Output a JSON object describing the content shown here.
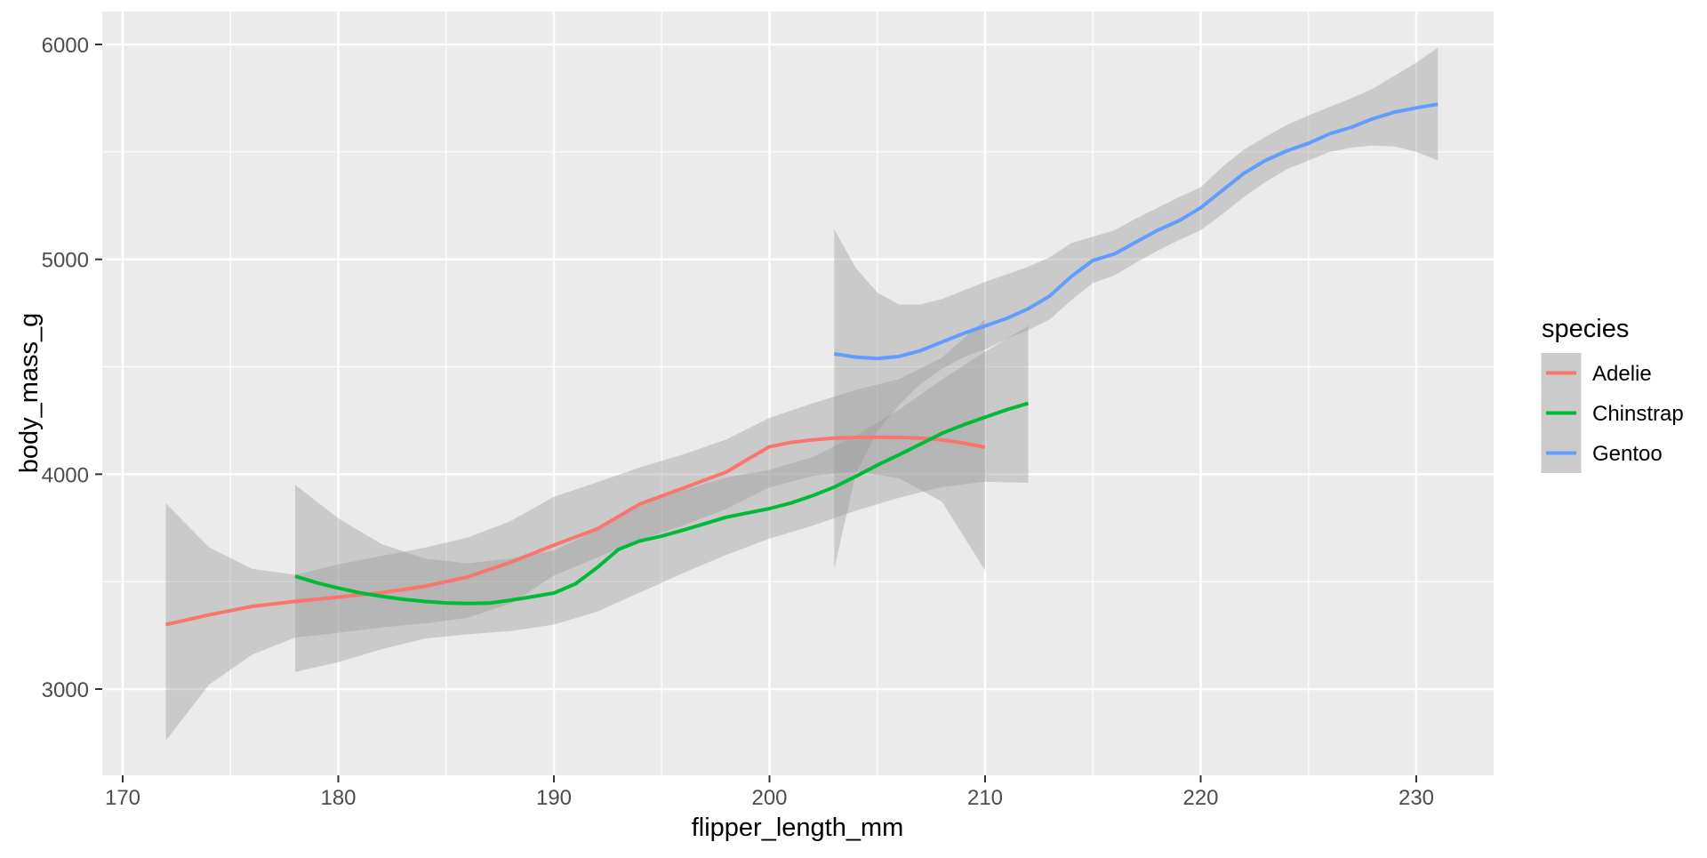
{
  "figure": {
    "kind": "ggplot2 smoothed line chart",
    "background": "#FFFFFF"
  },
  "colors": {
    "panel_bg": "#EBEBEB",
    "grid": "#FFFFFF",
    "tick_mark": "#333333",
    "tick_label": "#4D4D4D",
    "axis_title": "#000000",
    "ribbon_fill": "#999999",
    "legend_key_bg": "#CBCBCB"
  },
  "legend": {
    "title": "species",
    "entries": [
      {
        "label": "Adelie",
        "color": "#F8766D"
      },
      {
        "label": "Chinstrap",
        "color": "#00BA38"
      },
      {
        "label": "Gentoo",
        "color": "#619CFF"
      }
    ]
  },
  "chart_data": {
    "type": "line",
    "subtype": "loess-smooth-with-confidence-ribbons",
    "xlabel": "flipper_length_mm",
    "ylabel": "body_mass_g",
    "x_ticks": [
      170,
      180,
      190,
      200,
      210,
      220,
      230
    ],
    "x_minor_ticks": [
      175,
      185,
      195,
      205,
      215,
      225
    ],
    "y_ticks": [
      3000,
      4000,
      5000,
      6000
    ],
    "y_minor_ticks": [
      3500,
      4500,
      5500
    ],
    "xlim": [
      169.1,
      233.6
    ],
    "ylim": [
      2600,
      6150
    ],
    "grid": "major+minor",
    "legend_position": "right",
    "ribbon_fill": "#999999",
    "ribbon_opacity": 0.4,
    "series": [
      {
        "name": "Adelie",
        "color": "#F8766D",
        "x": [
          172,
          174,
          176,
          178,
          180,
          182,
          184,
          186,
          188,
          190,
          192,
          194,
          196,
          198,
          199,
          200,
          201,
          202,
          203,
          204,
          205,
          206,
          207,
          208,
          209,
          210
        ],
        "y": [
          3300,
          3345,
          3385,
          3408,
          3428,
          3448,
          3478,
          3522,
          3590,
          3670,
          3745,
          3862,
          3935,
          4010,
          4070,
          4128,
          4148,
          4160,
          4168,
          4171,
          4172,
          4171,
          4168,
          4160,
          4145,
          4125
        ],
        "ribbon": [
          [
            172,
            2760,
            3865
          ],
          [
            174,
            3020,
            3660
          ],
          [
            176,
            3160,
            3560
          ],
          [
            178,
            3240,
            3532
          ],
          [
            180,
            3262,
            3580
          ],
          [
            182,
            3287,
            3620
          ],
          [
            184,
            3305,
            3658
          ],
          [
            186,
            3332,
            3705
          ],
          [
            188,
            3398,
            3782
          ],
          [
            190,
            3528,
            3895
          ],
          [
            192,
            3612,
            3962
          ],
          [
            194,
            3695,
            4032
          ],
          [
            196,
            3762,
            4092
          ],
          [
            198,
            3838,
            4162
          ],
          [
            200,
            3938,
            4262
          ],
          [
            202,
            3992,
            4330
          ],
          [
            204,
            4012,
            4392
          ],
          [
            206,
            3982,
            4442
          ],
          [
            208,
            3872,
            4542
          ],
          [
            210,
            3552,
            4722
          ]
        ]
      },
      {
        "name": "Chinstrap",
        "color": "#00BA38",
        "x": [
          178,
          179,
          180,
          181,
          182,
          183,
          184,
          185,
          186,
          187,
          188,
          189,
          190,
          191,
          192,
          193,
          194,
          195,
          196,
          197,
          198,
          199,
          200,
          201,
          202,
          203,
          204,
          205,
          206,
          207,
          208,
          209,
          210,
          211,
          212
        ],
        "y": [
          3525,
          3495,
          3470,
          3448,
          3432,
          3418,
          3408,
          3401,
          3398,
          3400,
          3414,
          3430,
          3447,
          3490,
          3565,
          3650,
          3690,
          3712,
          3740,
          3770,
          3800,
          3820,
          3840,
          3866,
          3900,
          3940,
          3990,
          4042,
          4090,
          4140,
          4190,
          4230,
          4265,
          4300,
          4330
        ],
        "ribbon": [
          [
            178,
            3080,
            3950
          ],
          [
            180,
            3125,
            3795
          ],
          [
            182,
            3185,
            3675
          ],
          [
            184,
            3235,
            3608
          ],
          [
            186,
            3255,
            3585
          ],
          [
            188,
            3270,
            3608
          ],
          [
            190,
            3300,
            3645
          ],
          [
            192,
            3360,
            3740
          ],
          [
            194,
            3450,
            3860
          ],
          [
            196,
            3540,
            3925
          ],
          [
            198,
            3625,
            3985
          ],
          [
            200,
            3700,
            4020
          ],
          [
            202,
            3760,
            4080
          ],
          [
            204,
            3830,
            4180
          ],
          [
            206,
            3890,
            4300
          ],
          [
            208,
            3940,
            4440
          ],
          [
            210,
            3965,
            4570
          ],
          [
            212,
            3960,
            4690
          ]
        ]
      },
      {
        "name": "Gentoo",
        "color": "#619CFF",
        "x": [
          203,
          204,
          205,
          206,
          207,
          208,
          209,
          210,
          211,
          212,
          213,
          214,
          215,
          216,
          217,
          218,
          219,
          220,
          221,
          222,
          223,
          224,
          225,
          226,
          227,
          228,
          229,
          230,
          231
        ],
        "y": [
          4560,
          4545,
          4538,
          4548,
          4575,
          4615,
          4655,
          4690,
          4725,
          4770,
          4830,
          4920,
          4995,
          5025,
          5080,
          5135,
          5180,
          5240,
          5320,
          5400,
          5460,
          5505,
          5540,
          5585,
          5615,
          5655,
          5685,
          5705,
          5722
        ],
        "ribbon": [
          [
            203,
            3560,
            5140
          ],
          [
            204,
            4000,
            4960
          ],
          [
            205,
            4200,
            4845
          ],
          [
            206,
            4320,
            4790
          ],
          [
            207,
            4420,
            4790
          ],
          [
            208,
            4490,
            4815
          ],
          [
            209,
            4545,
            4855
          ],
          [
            210,
            4580,
            4895
          ],
          [
            211,
            4630,
            4930
          ],
          [
            212,
            4670,
            4965
          ],
          [
            213,
            4720,
            5010
          ],
          [
            214,
            4810,
            5075
          ],
          [
            215,
            4890,
            5105
          ],
          [
            216,
            4925,
            5135
          ],
          [
            217,
            4985,
            5190
          ],
          [
            218,
            5040,
            5240
          ],
          [
            219,
            5090,
            5290
          ],
          [
            220,
            5135,
            5335
          ],
          [
            221,
            5210,
            5430
          ],
          [
            222,
            5290,
            5510
          ],
          [
            223,
            5360,
            5570
          ],
          [
            224,
            5420,
            5625
          ],
          [
            225,
            5460,
            5670
          ],
          [
            226,
            5500,
            5710
          ],
          [
            227,
            5520,
            5750
          ],
          [
            228,
            5530,
            5795
          ],
          [
            229,
            5525,
            5855
          ],
          [
            230,
            5500,
            5915
          ],
          [
            231,
            5460,
            5985
          ]
        ]
      }
    ]
  }
}
